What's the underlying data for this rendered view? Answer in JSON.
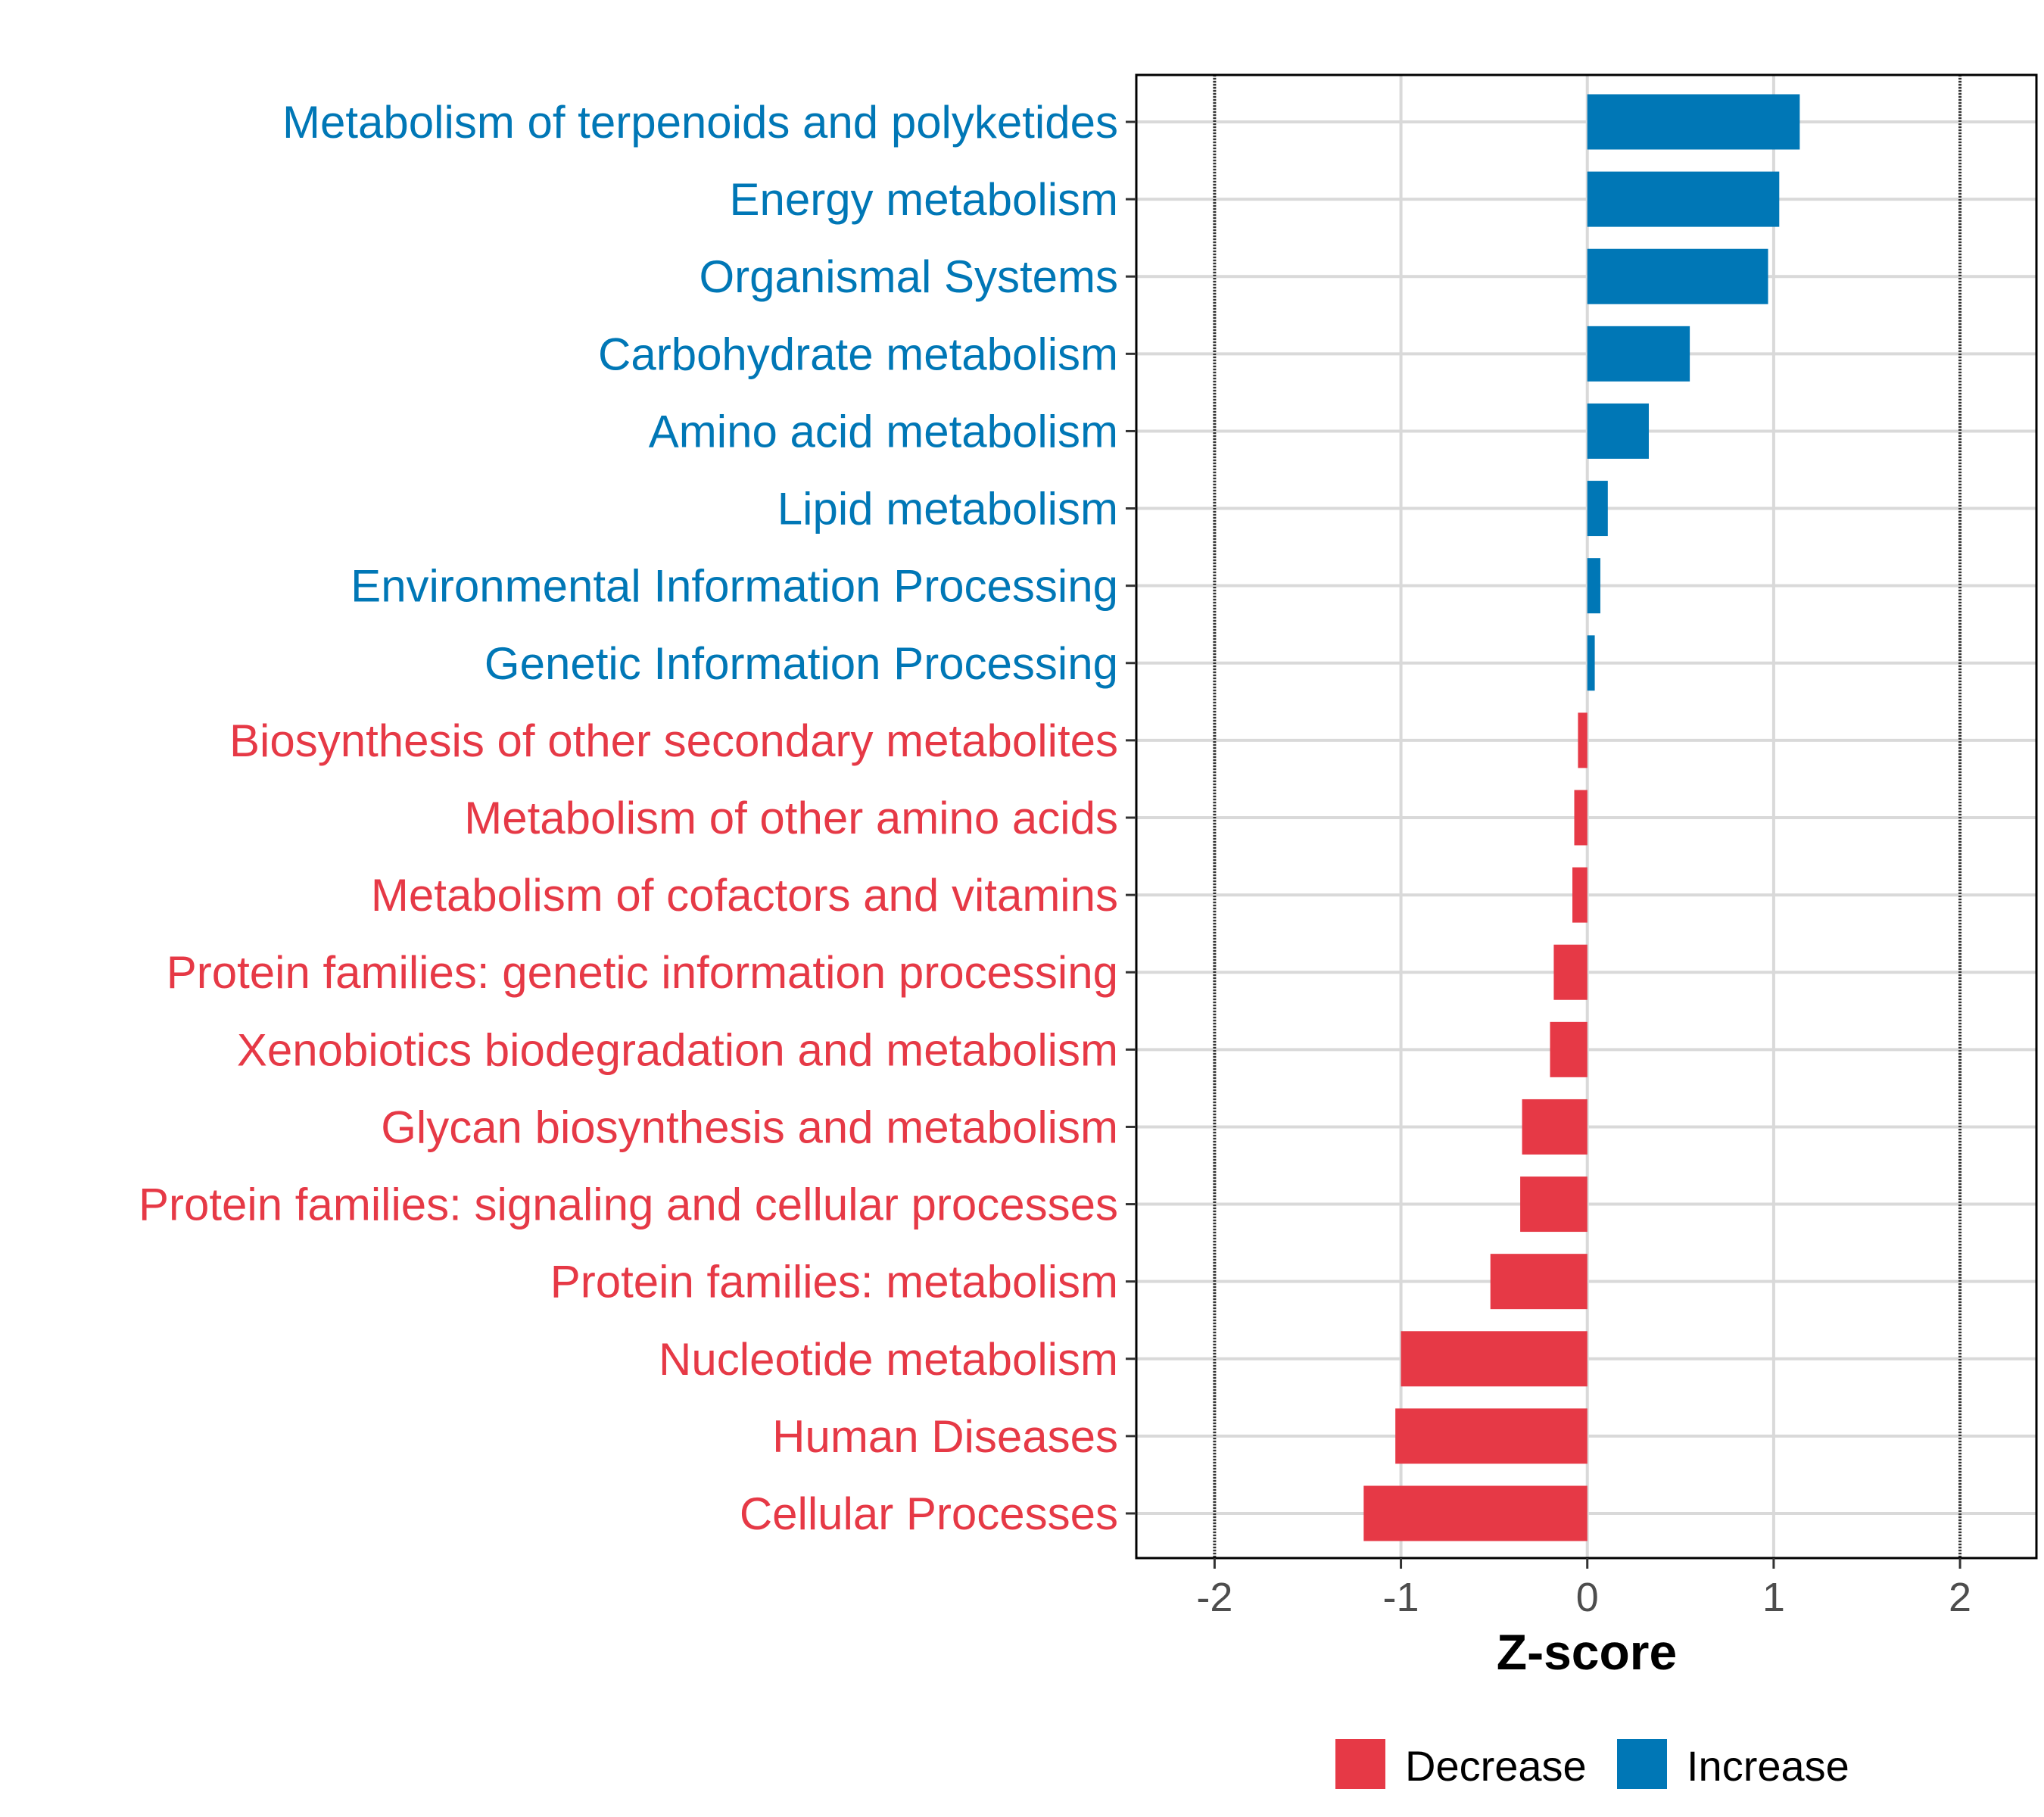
{
  "chart_data": {
    "type": "bar",
    "orientation": "horizontal",
    "title": "",
    "xlabel": "Z-score",
    "ylabel": "",
    "xlim": [
      -2.42,
      2.41
    ],
    "xticks": [
      -2,
      -1,
      0,
      1,
      2
    ],
    "xtick_labels": [
      "-2",
      "-1",
      "0",
      "1",
      "2"
    ],
    "reference_lines": [
      -2,
      2
    ],
    "grid": true,
    "colors": {
      "Decrease": "#E63946",
      "Increase": "#0077B6"
    },
    "categories": [
      "Metabolism of terpenoids and polyketides",
      "Energy metabolism",
      "Organismal Systems",
      "Carbohydrate metabolism",
      "Amino acid metabolism",
      "Lipid metabolism",
      "Environmental Information Processing",
      "Genetic Information Processing",
      "Biosynthesis of other secondary metabolites",
      "Metabolism of other amino acids",
      "Metabolism of cofactors and vitamins",
      "Protein families: genetic information processing",
      "Xenobiotics biodegradation and metabolism",
      "Glycan biosynthesis and metabolism",
      "Protein families: signaling and cellular processes",
      "Protein families: metabolism",
      "Nucleotide metabolism",
      "Human Diseases",
      "Cellular Processes"
    ],
    "values": [
      1.14,
      1.03,
      0.97,
      0.55,
      0.33,
      0.11,
      0.07,
      0.04,
      -0.05,
      -0.07,
      -0.08,
      -0.18,
      -0.2,
      -0.35,
      -0.36,
      -0.52,
      -1.0,
      -1.03,
      -1.2
    ],
    "legend": {
      "position": "bottom",
      "entries": [
        "Decrease",
        "Increase"
      ]
    }
  }
}
